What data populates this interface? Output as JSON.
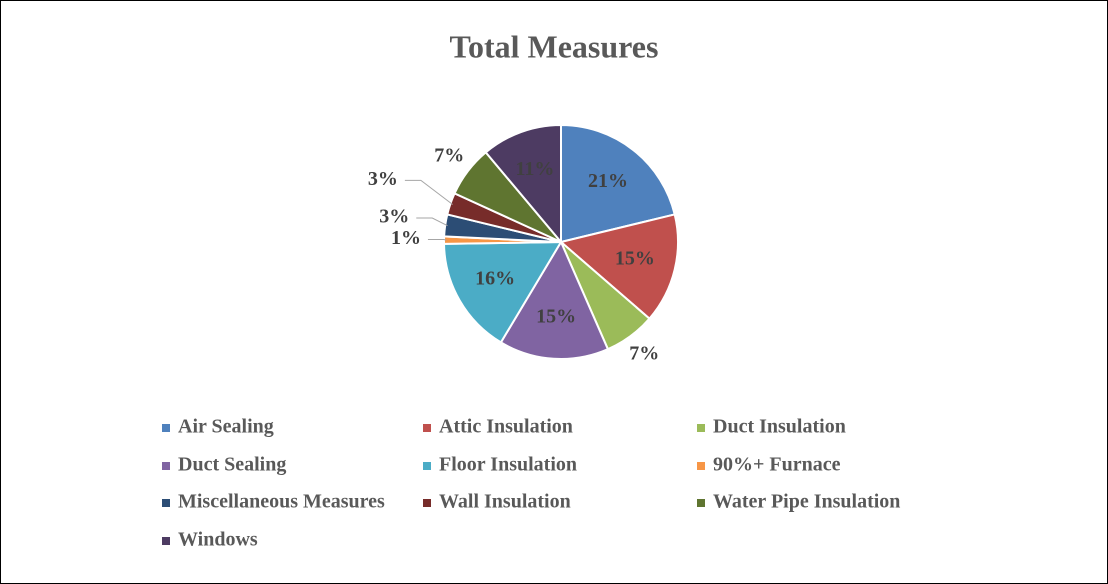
{
  "chart_data": {
    "type": "pie",
    "title": "Total Measures",
    "categories": [
      "Air Sealing",
      "Attic Insulation",
      "Duct Insulation",
      "Duct Sealing",
      "Floor Insulation",
      "90%+ Furnace",
      "Miscellaneous Measures",
      "Wall Insulation",
      "Water Pipe Insulation",
      "Windows"
    ],
    "values": [
      21,
      15,
      7,
      15,
      16,
      1,
      3,
      3,
      7,
      11
    ],
    "value_labels": [
      "21%",
      "15%",
      "7%",
      "15%",
      "16%",
      "1%",
      "3%",
      "3%",
      "7%",
      "11%"
    ],
    "colors": [
      "#4f81bd",
      "#c0504d",
      "#9bbb59",
      "#8064a2",
      "#4bacc6",
      "#f79646",
      "#2c4d75",
      "#772c2a",
      "#5f7530",
      "#4d3b62"
    ],
    "legend": "bottom"
  }
}
